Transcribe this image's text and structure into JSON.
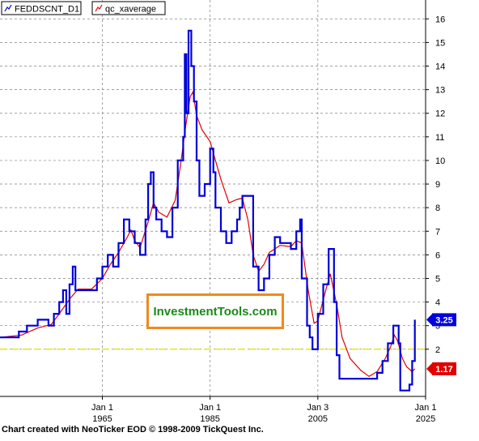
{
  "colors": {
    "series_main": "#0000d8",
    "series_avg": "#e00000",
    "reference_line": "#e8e800",
    "grid": "#808080",
    "badge_main": "#0000d8",
    "badge_avg": "#e00000",
    "watermark_border": "#f08a1c",
    "watermark_text": "#1a8a1a"
  },
  "watermark": "InvestmentTools.com",
  "credit": "Chart created with NeoTicker EOD © 1998-2009 TickQuest Inc.",
  "chart_data": {
    "type": "line",
    "grid": true,
    "legend_position": "top-left",
    "x_unit": "year",
    "xlim": [
      1946,
      2025
    ],
    "ylim": [
      0,
      17
    ],
    "y_ticks": [
      2,
      3,
      4,
      5,
      6,
      7,
      8,
      9,
      10,
      11,
      12,
      13,
      14,
      15,
      16
    ],
    "x_ticks": [
      {
        "x": 1965,
        "line1": "Jan 1",
        "line2": "1965"
      },
      {
        "x": 1985,
        "line1": "Jan 1",
        "line2": "1985"
      },
      {
        "x": 2005,
        "line1": "Jan 3",
        "line2": "2005"
      },
      {
        "x": 2025,
        "line1": "Jan 1",
        "line2": "2025"
      }
    ],
    "reference_line": {
      "y": 2
    },
    "series": [
      {
        "name": "FEDDSCNT_D1",
        "style": "step",
        "last_value": "3.25",
        "points": [
          [
            1946,
            2.5
          ],
          [
            1949,
            2.5
          ],
          [
            1949.5,
            2.75
          ],
          [
            1951,
            3
          ],
          [
            1953,
            3.25
          ],
          [
            1955,
            3
          ],
          [
            1956,
            3.5
          ],
          [
            1957,
            4
          ],
          [
            1957.7,
            4.5
          ],
          [
            1958.3,
            3.5
          ],
          [
            1958.9,
            4.75
          ],
          [
            1959.5,
            5.5
          ],
          [
            1960,
            4.5
          ],
          [
            1963,
            4.5
          ],
          [
            1964,
            5
          ],
          [
            1965,
            5.5
          ],
          [
            1966,
            6
          ],
          [
            1967,
            5.5
          ],
          [
            1968,
            6.5
          ],
          [
            1969,
            7.5
          ],
          [
            1970,
            7
          ],
          [
            1971,
            6.5
          ],
          [
            1972,
            6
          ],
          [
            1973,
            7.5
          ],
          [
            1973.5,
            9
          ],
          [
            1974,
            9.5
          ],
          [
            1974.5,
            8
          ],
          [
            1975,
            7.5
          ],
          [
            1976,
            7
          ],
          [
            1977,
            6.75
          ],
          [
            1978,
            8
          ],
          [
            1979,
            10
          ],
          [
            1980,
            11
          ],
          [
            1980.3,
            14.5
          ],
          [
            1980.6,
            12
          ],
          [
            1981,
            15.5
          ],
          [
            1981.5,
            14
          ],
          [
            1982,
            12.5
          ],
          [
            1982.5,
            10
          ],
          [
            1983,
            8.5
          ],
          [
            1984,
            9
          ],
          [
            1985,
            10.5
          ],
          [
            1985.6,
            9.5
          ],
          [
            1986,
            8
          ],
          [
            1987,
            7
          ],
          [
            1988,
            6.5
          ],
          [
            1989,
            7
          ],
          [
            1990,
            7.5
          ],
          [
            1990.5,
            8
          ],
          [
            1991,
            8.5
          ],
          [
            1993,
            5.5
          ],
          [
            1994,
            4.5
          ],
          [
            1995,
            5
          ],
          [
            1996,
            6
          ],
          [
            1997,
            6.75
          ],
          [
            1998,
            6.5
          ],
          [
            2000,
            6.25
          ],
          [
            2001,
            7
          ],
          [
            2001.7,
            7.5
          ],
          [
            2002,
            5
          ],
          [
            2003,
            3
          ],
          [
            2003.5,
            2.5
          ],
          [
            2004,
            2
          ],
          [
            2005,
            3.5
          ],
          [
            2006,
            4.75
          ],
          [
            2007,
            6.25
          ],
          [
            2008,
            4
          ],
          [
            2008.5,
            1.75
          ],
          [
            2009,
            0.75
          ],
          [
            2010,
            0.75
          ],
          [
            2015,
            0.75
          ],
          [
            2016,
            1
          ],
          [
            2017,
            1.5
          ],
          [
            2018,
            2.25
          ],
          [
            2019,
            3
          ],
          [
            2020,
            2.25
          ],
          [
            2020.3,
            0.25
          ],
          [
            2022,
            0.5
          ],
          [
            2022.5,
            1.5
          ],
          [
            2023,
            3.25
          ]
        ]
      },
      {
        "name": "qc_xaverage",
        "style": "line",
        "last_value": "1.17",
        "points": [
          [
            1946,
            2.5
          ],
          [
            1950,
            2.6
          ],
          [
            1953,
            2.9
          ],
          [
            1955.5,
            3.05
          ],
          [
            1957,
            3.5
          ],
          [
            1959,
            4.15
          ],
          [
            1960.5,
            4.55
          ],
          [
            1963,
            4.55
          ],
          [
            1965,
            5
          ],
          [
            1966.5,
            5.6
          ],
          [
            1968,
            6.1
          ],
          [
            1969.5,
            6.7
          ],
          [
            1970.3,
            7.05
          ],
          [
            1971,
            6.6
          ],
          [
            1972,
            6.3
          ],
          [
            1973.5,
            7.4
          ],
          [
            1974.5,
            8.2
          ],
          [
            1975.5,
            7.8
          ],
          [
            1977,
            7.6
          ],
          [
            1978.5,
            8.3
          ],
          [
            1979.5,
            9.8
          ],
          [
            1980.5,
            11.5
          ],
          [
            1981.3,
            12.7
          ],
          [
            1981.8,
            12.9
          ],
          [
            1982.5,
            11.9
          ],
          [
            1983.5,
            11.3
          ],
          [
            1985,
            10.8
          ],
          [
            1986,
            10
          ],
          [
            1987,
            9.2
          ],
          [
            1988.5,
            8.2
          ],
          [
            1990,
            8.35
          ],
          [
            1991,
            8.4
          ],
          [
            1992,
            7.5
          ],
          [
            1993,
            6
          ],
          [
            1994,
            5.3
          ],
          [
            1995,
            5.6
          ],
          [
            1996,
            6.1
          ],
          [
            1998,
            6.4
          ],
          [
            2000,
            6.35
          ],
          [
            2001,
            6.6
          ],
          [
            2002,
            6.5
          ],
          [
            2003.2,
            4.5
          ],
          [
            2004.3,
            3.1
          ],
          [
            2005,
            3.2
          ],
          [
            2006,
            4.1
          ],
          [
            2007.3,
            5.2
          ],
          [
            2008.5,
            3.9
          ],
          [
            2009.5,
            2.5
          ],
          [
            2011,
            1.6
          ],
          [
            2013,
            1.1
          ],
          [
            2014.5,
            0.85
          ],
          [
            2016,
            1.05
          ],
          [
            2017.5,
            1.6
          ],
          [
            2018.5,
            2.1
          ],
          [
            2019.2,
            2.6
          ],
          [
            2019.8,
            2.35
          ],
          [
            2020.7,
            1.6
          ],
          [
            2021.5,
            1.25
          ],
          [
            2022.5,
            1.05
          ],
          [
            2023,
            1.17
          ]
        ]
      }
    ]
  }
}
